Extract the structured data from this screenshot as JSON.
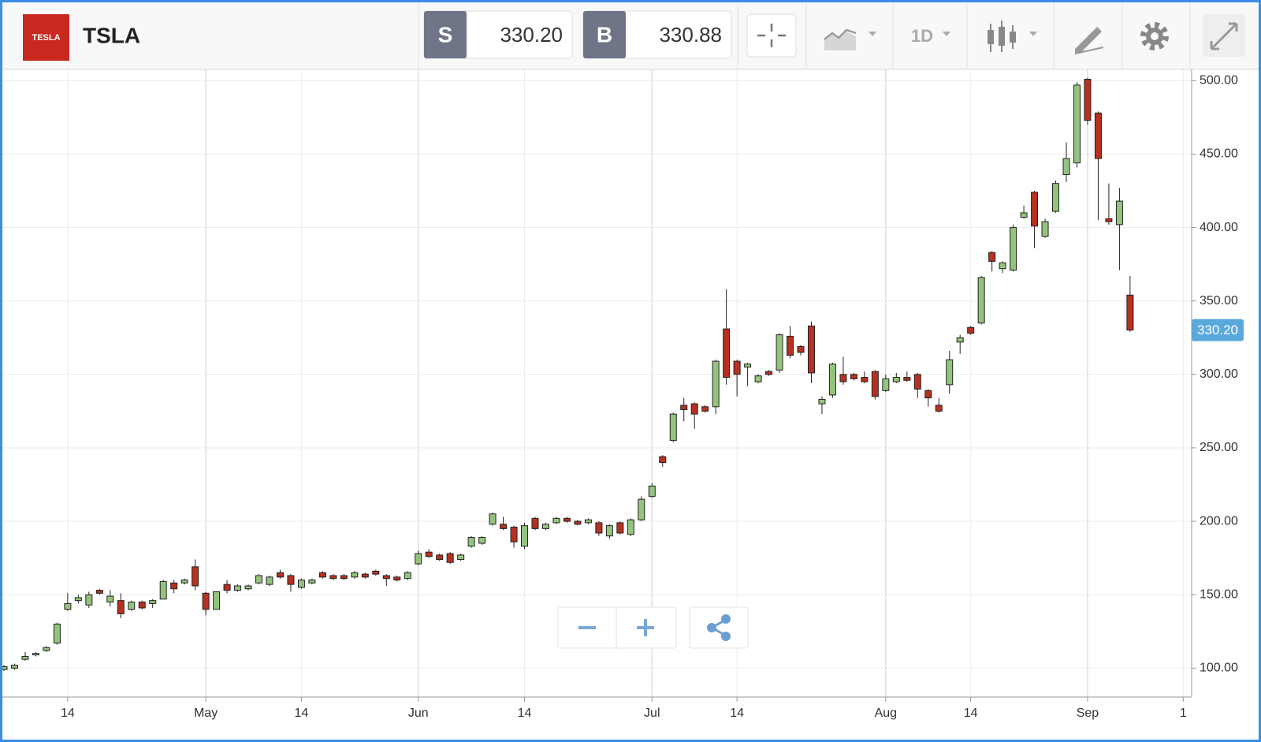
{
  "toolbar": {
    "logo": "TESLA",
    "symbol": "TSLA",
    "sell": {
      "label": "S",
      "price": "330.20"
    },
    "buy": {
      "label": "B",
      "price": "330.88"
    },
    "interval": "1D"
  },
  "chart_data": {
    "type": "candlestick",
    "categories": [
      null,
      null,
      null,
      null,
      null,
      null,
      "14",
      null,
      null,
      null,
      null,
      null,
      null,
      null,
      null,
      null,
      null,
      null,
      null,
      "May",
      null,
      null,
      null,
      null,
      null,
      null,
      null,
      null,
      "14",
      null,
      null,
      null,
      null,
      null,
      null,
      null,
      null,
      null,
      null,
      "Jun",
      null,
      null,
      null,
      null,
      null,
      null,
      null,
      null,
      null,
      "14",
      null,
      null,
      null,
      null,
      null,
      null,
      null,
      null,
      null,
      null,
      null,
      "Jul",
      null,
      null,
      null,
      null,
      null,
      null,
      null,
      "14",
      null,
      null,
      null,
      null,
      null,
      null,
      null,
      null,
      null,
      null,
      null,
      null,
      null,
      "Aug",
      null,
      null,
      null,
      null,
      null,
      null,
      null,
      "14",
      null,
      null,
      null,
      null,
      null,
      null,
      null,
      null,
      null,
      null,
      "Sep",
      null,
      null,
      null,
      null,
      null,
      null,
      null,
      null,
      "1"
    ],
    "open": [
      99,
      100,
      106,
      109,
      112,
      117,
      140,
      146,
      143,
      153,
      145,
      146,
      140,
      145,
      144,
      147,
      158,
      158,
      169,
      151,
      140,
      157,
      153,
      154,
      158,
      157,
      165,
      163,
      155,
      158,
      165,
      163,
      163,
      162,
      164,
      166,
      163,
      162,
      161,
      171,
      179,
      177,
      178,
      174,
      183,
      185,
      198,
      198,
      196,
      183,
      202,
      195,
      199,
      202,
      200,
      199,
      199,
      190,
      199,
      191,
      201,
      217,
      244,
      255,
      279,
      280,
      278,
      278,
      331,
      309,
      305,
      295,
      302,
      303,
      326,
      319,
      333,
      280,
      286,
      300,
      300,
      298,
      302,
      289,
      295,
      298,
      300,
      289,
      279,
      293,
      322,
      332,
      335,
      383,
      372,
      371,
      407,
      424,
      394,
      411,
      436,
      444,
      501,
      478,
      406,
      402,
      354,
      null,
      null,
      null,
      null,
      null
    ],
    "high": [
      102,
      103,
      111,
      111,
      115,
      131,
      151,
      150,
      152,
      154,
      153,
      151,
      146,
      146,
      147,
      160,
      160,
      161,
      174,
      152,
      152,
      160,
      157,
      157,
      164,
      163,
      167,
      164,
      161,
      161,
      166,
      164,
      164,
      166,
      165,
      167,
      164,
      163,
      166,
      180,
      181,
      178,
      179,
      178,
      190,
      190,
      206,
      203,
      197,
      199,
      203,
      199,
      203,
      203,
      201,
      202,
      200,
      198,
      200,
      202,
      217,
      226,
      245,
      274,
      284,
      281,
      279,
      310,
      358,
      310,
      308,
      300,
      303,
      328,
      333,
      320,
      336,
      285,
      308,
      312,
      301,
      302,
      303,
      300,
      301,
      302,
      301,
      290,
      284,
      316,
      327,
      333,
      367,
      384,
      377,
      402,
      415,
      425,
      406,
      432,
      458,
      499,
      502,
      479,
      430,
      427,
      367,
      null,
      null,
      null,
      null,
      null
    ],
    "low": [
      98,
      99,
      105,
      108,
      111,
      116,
      139,
      144,
      141,
      150,
      142,
      134,
      139,
      140,
      141,
      147,
      151,
      157,
      153,
      136,
      140,
      151,
      152,
      153,
      157,
      156,
      161,
      152,
      154,
      157,
      161,
      160,
      160,
      161,
      161,
      163,
      156,
      159,
      160,
      170,
      175,
      173,
      171,
      173,
      182,
      184,
      197,
      194,
      182,
      181,
      194,
      194,
      198,
      199,
      197,
      198,
      190,
      188,
      191,
      190,
      200,
      216,
      237,
      254,
      268,
      263,
      274,
      273,
      293,
      285,
      292,
      294,
      299,
      301,
      311,
      313,
      294,
      273,
      284,
      293,
      296,
      294,
      283,
      288,
      294,
      295,
      284,
      278,
      274,
      287,
      314,
      327,
      334,
      370,
      369,
      370,
      406,
      386,
      393,
      410,
      431,
      441,
      470,
      405,
      402,
      371,
      329,
      null,
      null,
      null,
      null,
      null
    ],
    "close": [
      101,
      102,
      108,
      110,
      114,
      130,
      144,
      148,
      150,
      151,
      149,
      137,
      145,
      141,
      146,
      159,
      154,
      160,
      156,
      140,
      152,
      153,
      156,
      156,
      163,
      162,
      162,
      157,
      160,
      160,
      162,
      161,
      161,
      165,
      162,
      164,
      161,
      160,
      165,
      178,
      176,
      174,
      172,
      177,
      189,
      189,
      205,
      195,
      186,
      197,
      195,
      198,
      202,
      200,
      198,
      201,
      192,
      197,
      192,
      201,
      215,
      224,
      240,
      273,
      276,
      273,
      275,
      309,
      298,
      300,
      307,
      299,
      300,
      327,
      313,
      315,
      301,
      283,
      307,
      295,
      297,
      295,
      285,
      297,
      298,
      296,
      290,
      284,
      275,
      310,
      325,
      328,
      366,
      377,
      376,
      400,
      410,
      401,
      404,
      430,
      447,
      497,
      473,
      447,
      404,
      418,
      330.2,
      null,
      null,
      null,
      null,
      null
    ],
    "up_color": "#93c47d",
    "down_color": "#b8301f",
    "ylim": [
      80.3,
      507.7
    ],
    "yticks": [
      {
        "value": 100,
        "label": "100.00"
      },
      {
        "value": 150,
        "label": "150.00"
      },
      {
        "value": 200,
        "label": "200.00"
      },
      {
        "value": 250,
        "label": "250.00"
      },
      {
        "value": 300,
        "label": "300.00"
      },
      {
        "value": 350,
        "label": "350.00"
      },
      {
        "value": 400,
        "label": "400.00"
      },
      {
        "value": 450,
        "label": "450.00"
      },
      {
        "value": 500,
        "label": "500.00"
      }
    ],
    "price_marker": {
      "value": 330.2,
      "label": "330.20"
    },
    "grid": true
  }
}
